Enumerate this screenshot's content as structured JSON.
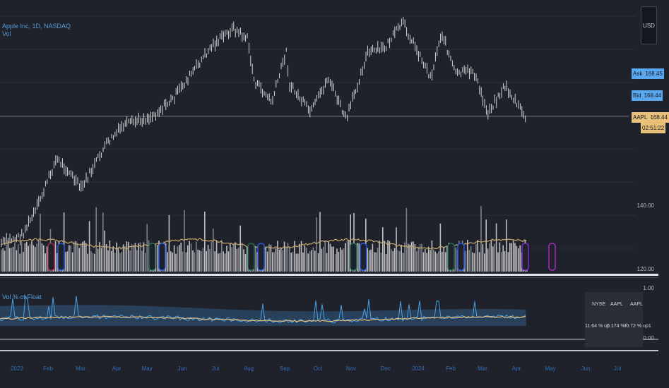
{
  "legend": {
    "symbol": "Apple Inc, 1D, NASDAQ",
    "volume_label": "Vol",
    "indicator_label": "Vol % of Float"
  },
  "currency_button": "USD",
  "price_scale": {
    "labels": [
      "140.00",
      "120.00"
    ]
  },
  "indicator_scale": {
    "labels": [
      "1.00",
      "0.00"
    ]
  },
  "price_tags": {
    "ask": {
      "name": "Ask",
      "value": "168.45"
    },
    "bid": {
      "name": "Bid",
      "value": "168.44"
    },
    "last": {
      "name": "AAPL",
      "value": "168.44",
      "countdown": "02:51:22"
    }
  },
  "time_axis": [
    "2023",
    "Feb",
    "Mar",
    "Apr",
    "May",
    "Jun",
    "Jul",
    "Aug",
    "Sep",
    "Oct",
    "Nov",
    "Dec",
    "2024",
    "Feb",
    "Mar",
    "Apr",
    "May",
    "Jun",
    "Jul"
  ],
  "float_table": {
    "headers": [
      "NYSE",
      "AAPL",
      "AAPL"
    ],
    "values": [
      "11.64 % up",
      "0.174 %f",
      "-0.72 % up1"
    ]
  },
  "colors": {
    "background": "#1f222b",
    "price_bars": "#e6e6e6",
    "volume_bars": "#bfbfbf",
    "volume_ma": "#c8a96e",
    "indicator_line": "#4aa3e6",
    "indicator_ma": "#e8c07a",
    "accent": "#2962ff",
    "ask_tag": "#5aa8f0",
    "last_tag": "#e8c07a"
  },
  "markers": [
    "earnings-icon",
    "dividend-icon",
    "split-icon"
  ]
}
